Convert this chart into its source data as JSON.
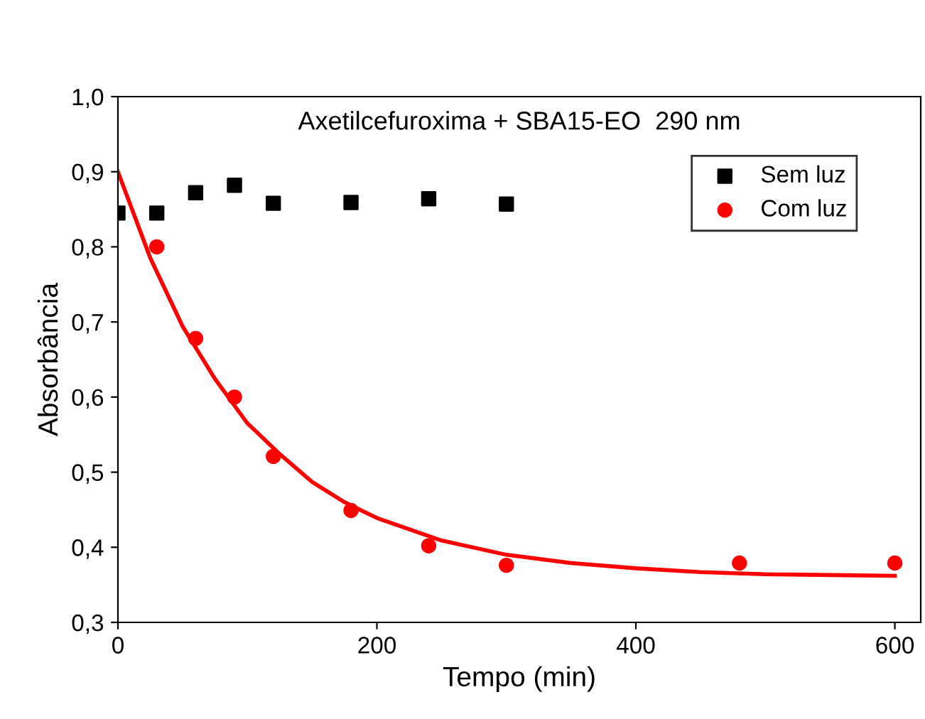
{
  "chart_data": {
    "type": "scatter",
    "title": "Axetilcefuroxima + SBA15-EO  290 nm",
    "xlabel": "Tempo (min)",
    "ylabel": "Absorbância",
    "xlim": [
      0,
      620
    ],
    "ylim": [
      0.3,
      1.0
    ],
    "xticks": [
      0,
      200,
      400,
      600
    ],
    "yticks": [
      {
        "value": 0.3,
        "label": "0,3"
      },
      {
        "value": 0.4,
        "label": "0,4"
      },
      {
        "value": 0.5,
        "label": "0,5"
      },
      {
        "value": 0.6,
        "label": "0,6"
      },
      {
        "value": 0.7,
        "label": "0,7"
      },
      {
        "value": 0.8,
        "label": "0,8"
      },
      {
        "value": 0.9,
        "label": "0,9"
      },
      {
        "value": 1.0,
        "label": "1,0"
      }
    ],
    "legend": "top right",
    "grid": false,
    "series": [
      {
        "name": "Sem luz",
        "marker": "square",
        "color": "#000000",
        "x": [
          0,
          30,
          60,
          90,
          120,
          180,
          240,
          300
        ],
        "values": [
          0.845,
          0.845,
          0.872,
          0.882,
          0.858,
          0.859,
          0.864,
          0.857
        ]
      },
      {
        "name": "Com luz",
        "marker": "circle",
        "color": "#ff0000",
        "x": [
          30,
          60,
          90,
          120,
          180,
          240,
          300,
          480,
          600
        ],
        "values": [
          0.8,
          0.678,
          0.6,
          0.521,
          0.449,
          0.402,
          0.376,
          0.379,
          0.379
        ]
      },
      {
        "type": "line",
        "marker": "none",
        "line_style": "solid",
        "color": "#ff0000",
        "x": [
          0,
          25,
          50,
          75,
          100,
          125,
          150,
          175,
          200,
          250,
          300,
          350,
          400,
          450,
          500,
          550,
          600
        ],
        "values": [
          0.9,
          0.785,
          0.694,
          0.624,
          0.565,
          0.524,
          0.487,
          0.46,
          0.439,
          0.409,
          0.39,
          0.379,
          0.372,
          0.367,
          0.364,
          0.363,
          0.362
        ]
      }
    ]
  }
}
